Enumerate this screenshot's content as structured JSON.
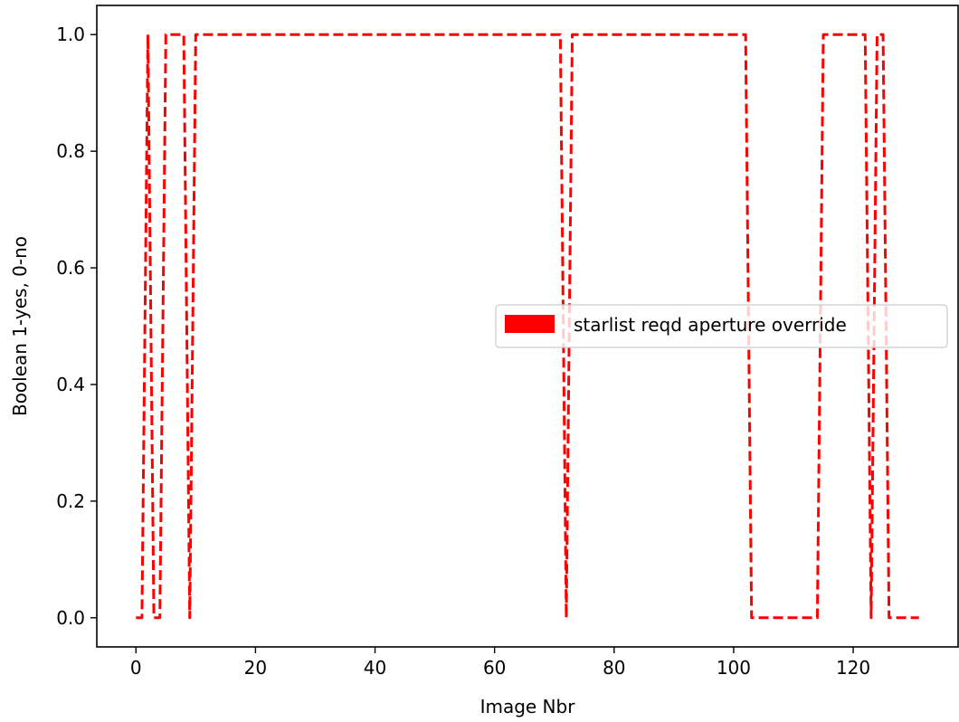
{
  "chart_data": {
    "type": "line",
    "title": "",
    "xlabel": "Image Nbr",
    "ylabel": "Boolean 1-yes, 0-no",
    "xlim": [
      -6.55,
      137.55
    ],
    "ylim": [
      -0.05,
      1.05
    ],
    "xticks": [
      0,
      20,
      40,
      60,
      80,
      100,
      120
    ],
    "xtick_labels": [
      "0",
      "20",
      "40",
      "60",
      "80",
      "100",
      "120"
    ],
    "yticks": [
      0.0,
      0.2,
      0.4,
      0.6,
      0.8,
      1.0
    ],
    "ytick_labels": [
      "0.0",
      "0.2",
      "0.4",
      "0.6",
      "0.8",
      "1.0"
    ],
    "grid": false,
    "legend": {
      "placement": "center-right",
      "entries": [
        "starlist reqd aperture override"
      ]
    },
    "series": [
      {
        "name": "starlist reqd aperture override",
        "color": "#ff0000",
        "linestyle": "dashed",
        "x": [
          0,
          1,
          2,
          3,
          4,
          5,
          6,
          7,
          8,
          9,
          10,
          11,
          12,
          13,
          14,
          15,
          16,
          17,
          18,
          19,
          20,
          21,
          22,
          23,
          24,
          25,
          26,
          27,
          28,
          29,
          30,
          31,
          32,
          33,
          34,
          35,
          36,
          37,
          38,
          39,
          40,
          41,
          42,
          43,
          44,
          45,
          46,
          47,
          48,
          49,
          50,
          51,
          52,
          53,
          54,
          55,
          56,
          57,
          58,
          59,
          60,
          61,
          62,
          63,
          64,
          65,
          66,
          67,
          68,
          69,
          70,
          71,
          72,
          73,
          74,
          75,
          76,
          77,
          78,
          79,
          80,
          81,
          82,
          83,
          84,
          85,
          86,
          87,
          88,
          89,
          90,
          91,
          92,
          93,
          94,
          95,
          96,
          97,
          98,
          99,
          100,
          101,
          102,
          103,
          104,
          105,
          106,
          107,
          108,
          109,
          110,
          111,
          112,
          113,
          114,
          115,
          116,
          117,
          118,
          119,
          120,
          121,
          122,
          123,
          124,
          125,
          126,
          127,
          128,
          129,
          130,
          131
        ],
        "y": [
          0,
          0,
          1,
          0,
          0,
          1,
          1,
          1,
          1,
          0,
          1,
          1,
          1,
          1,
          1,
          1,
          1,
          1,
          1,
          1,
          1,
          1,
          1,
          1,
          1,
          1,
          1,
          1,
          1,
          1,
          1,
          1,
          1,
          1,
          1,
          1,
          1,
          1,
          1,
          1,
          1,
          1,
          1,
          1,
          1,
          1,
          1,
          1,
          1,
          1,
          1,
          1,
          1,
          1,
          1,
          1,
          1,
          1,
          1,
          1,
          1,
          1,
          1,
          1,
          1,
          1,
          1,
          1,
          1,
          1,
          1,
          1,
          0,
          1,
          1,
          1,
          1,
          1,
          1,
          1,
          1,
          1,
          1,
          1,
          1,
          1,
          1,
          1,
          1,
          1,
          1,
          1,
          1,
          1,
          1,
          1,
          1,
          1,
          1,
          1,
          1,
          1,
          1,
          0,
          0,
          0,
          0,
          0,
          0,
          0,
          0,
          0,
          0,
          0,
          0,
          1,
          1,
          1,
          1,
          1,
          1,
          1,
          1,
          0,
          1,
          1,
          0,
          0,
          0,
          0,
          0,
          0
        ]
      }
    ]
  }
}
